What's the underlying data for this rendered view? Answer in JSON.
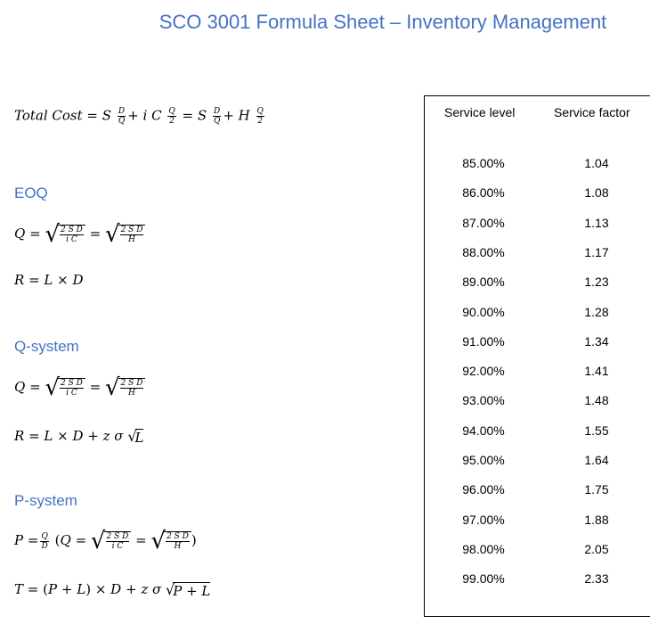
{
  "title": "SCO 3001 Formula Sheet – Inventory Management",
  "headings": {
    "eoq": "EOQ",
    "q_system": "Q-system",
    "p_system": "P-system"
  },
  "formulas": {
    "total_cost": "Total Cost = S D/Q + i C Q/2 = S D/Q + H Q/2",
    "eoq_q": "Q = √(2SD/iC) = √(2SD/H)",
    "eoq_r": "R = L × D",
    "q_q": "Q = √(2SD/iC) = √(2SD/H)",
    "q_r": "R = L × D + z σ √L",
    "p_p": "P = Q/D (Q = √(2SD/iC) = √(2SD/H))",
    "p_t": "T = (P + L) × D + z σ √(P + L)"
  },
  "table": {
    "headers": [
      "Service level",
      "Service factor"
    ],
    "rows": [
      [
        "85.00%",
        "1.04"
      ],
      [
        "86.00%",
        "1.08"
      ],
      [
        "87.00%",
        "1.13"
      ],
      [
        "88.00%",
        "1.17"
      ],
      [
        "89.00%",
        "1.23"
      ],
      [
        "90.00%",
        "1.28"
      ],
      [
        "91.00%",
        "1.34"
      ],
      [
        "92.00%",
        "1.41"
      ],
      [
        "93.00%",
        "1.48"
      ],
      [
        "94.00%",
        "1.55"
      ],
      [
        "95.00%",
        "1.64"
      ],
      [
        "96.00%",
        "1.75"
      ],
      [
        "97.00%",
        "1.88"
      ],
      [
        "98.00%",
        "2.05"
      ],
      [
        "99.00%",
        "2.33"
      ]
    ]
  }
}
